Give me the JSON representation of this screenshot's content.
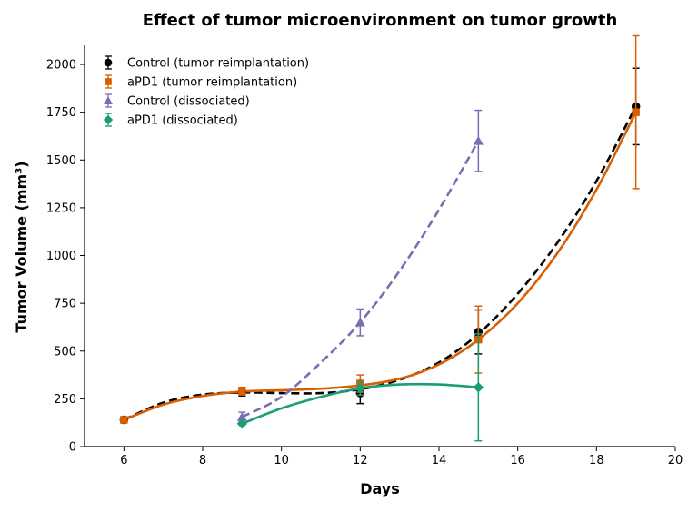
{
  "chart_data": {
    "type": "line",
    "title": "Effect of tumor microenvironment on tumor growth",
    "xlabel": "Days",
    "ylabel": "Tumor Volume (mm³)",
    "xlim": [
      5,
      20
    ],
    "ylim": [
      0,
      2100
    ],
    "xticks": [
      6,
      8,
      10,
      12,
      14,
      16,
      18,
      20
    ],
    "yticks": [
      0,
      250,
      500,
      750,
      1000,
      1250,
      1500,
      1750,
      2000
    ],
    "grid": false,
    "legend_position": "top-left",
    "series": [
      {
        "name": "Control (tumor reimplantation)",
        "color": "#000000",
        "marker": "circle",
        "line_style": "dashed",
        "x": [
          6,
          9,
          12,
          15,
          19
        ],
        "y": [
          140,
          285,
          280,
          600,
          1780
        ],
        "error": [
          0,
          20,
          55,
          115,
          200
        ],
        "fit": [
          [
            6,
            140
          ],
          [
            7,
            230
          ],
          [
            8,
            272
          ],
          [
            9,
            283
          ],
          [
            10,
            280
          ],
          [
            11,
            280
          ],
          [
            12,
            300
          ],
          [
            13,
            350
          ],
          [
            14,
            440
          ],
          [
            15,
            590
          ],
          [
            16,
            800
          ],
          [
            17,
            1065
          ],
          [
            18,
            1390
          ],
          [
            19,
            1780
          ]
        ]
      },
      {
        "name": "aPD1 (tumor reimplantation)",
        "color": "#d95f02",
        "marker": "square",
        "line_style": "solid",
        "x": [
          6,
          9,
          12,
          15,
          19
        ],
        "y": [
          140,
          290,
          330,
          560,
          1750
        ],
        "error": [
          0,
          20,
          45,
          175,
          400
        ],
        "fit": [
          [
            6,
            140
          ],
          [
            7,
            220
          ],
          [
            8,
            265
          ],
          [
            9,
            288
          ],
          [
            10,
            295
          ],
          [
            11,
            303
          ],
          [
            12,
            320
          ],
          [
            13,
            355
          ],
          [
            14,
            430
          ],
          [
            15,
            560
          ],
          [
            16,
            750
          ],
          [
            17,
            1010
          ],
          [
            18,
            1345
          ],
          [
            19,
            1750
          ]
        ]
      },
      {
        "name": "Control (dissociated)",
        "color": "#7570b3",
        "marker": "triangle",
        "line_style": "dashed",
        "x": [
          9,
          12,
          15
        ],
        "y": [
          155,
          650,
          1600
        ],
        "error": [
          25,
          70,
          160
        ],
        "fit": [
          [
            9,
            155
          ],
          [
            10,
            260
          ],
          [
            11,
            440
          ],
          [
            12,
            650
          ],
          [
            13,
            920
          ],
          [
            14,
            1240
          ],
          [
            15,
            1600
          ]
        ]
      },
      {
        "name": "aPD1 (dissociated)",
        "color": "#1b9e77",
        "marker": "diamond",
        "line_style": "solid",
        "x": [
          9,
          12,
          15
        ],
        "y": [
          120,
          305,
          310
        ],
        "error": [
          0,
          35,
          280
        ],
        "fit": [
          [
            9,
            120
          ],
          [
            10,
            200
          ],
          [
            11,
            260
          ],
          [
            12,
            305
          ],
          [
            13,
            325
          ],
          [
            14,
            325
          ],
          [
            15,
            310
          ]
        ]
      }
    ]
  }
}
